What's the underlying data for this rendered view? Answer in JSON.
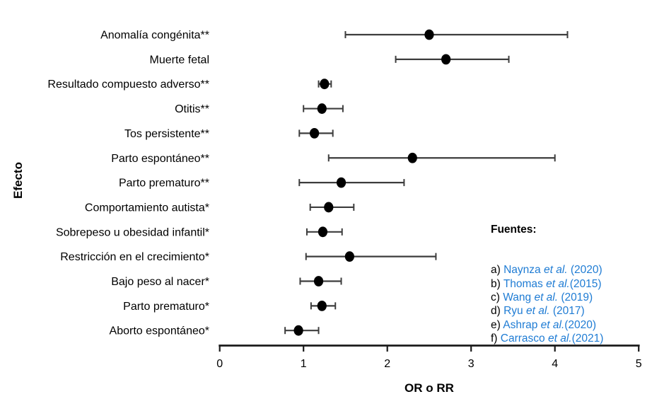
{
  "chart_data": {
    "type": "scatter",
    "subtype": "forest-plot",
    "title": "",
    "xlabel": "OR o RR",
    "ylabel": "Efecto",
    "xlim": [
      0,
      5
    ],
    "xticks": [
      0,
      1,
      2,
      3,
      4,
      5
    ],
    "xtick_labels": [
      "0",
      "1",
      "2",
      "3",
      "4",
      "5"
    ],
    "grid": false,
    "legend_position": "right-middle",
    "series": [
      {
        "name": "OR o RR con intervalo de confianza",
        "points": [
          {
            "label": "Anomalía congénita**",
            "value": 2.5,
            "ci_low": 1.5,
            "ci_high": 4.15
          },
          {
            "label": "Muerte fetal",
            "value": 2.7,
            "ci_low": 2.1,
            "ci_high": 3.45
          },
          {
            "label": "Resultado compuesto adverso**",
            "value": 1.25,
            "ci_low": 1.18,
            "ci_high": 1.33
          },
          {
            "label": "Otitis**",
            "value": 1.22,
            "ci_low": 1.0,
            "ci_high": 1.47
          },
          {
            "label": "Tos persistente**",
            "value": 1.13,
            "ci_low": 0.95,
            "ci_high": 1.35
          },
          {
            "label": "Parto espontáneo**",
            "value": 2.3,
            "ci_low": 1.3,
            "ci_high": 4.0
          },
          {
            "label": "Parto prematuro**",
            "value": 1.45,
            "ci_low": 0.95,
            "ci_high": 2.2
          },
          {
            "label": "Comportamiento autista*",
            "value": 1.3,
            "ci_low": 1.08,
            "ci_high": 1.6
          },
          {
            "label": "Sobrepeso u obesidad infantil*",
            "value": 1.23,
            "ci_low": 1.04,
            "ci_high": 1.46
          },
          {
            "label": "Restricción en el crecimiento*",
            "value": 1.55,
            "ci_low": 1.03,
            "ci_high": 2.58
          },
          {
            "label": "Bajo peso al nacer*",
            "value": 1.18,
            "ci_low": 0.96,
            "ci_high": 1.45
          },
          {
            "label": "Parto prematuro*",
            "value": 1.22,
            "ci_low": 1.09,
            "ci_high": 1.38
          },
          {
            "label": "Aborto espontáneo*",
            "value": 0.94,
            "ci_low": 0.78,
            "ci_high": 1.18
          }
        ]
      }
    ],
    "colors": {
      "point": "#000000",
      "error_bar": "#3d3d3d",
      "axis": "#1a1a1a",
      "text": "#000000",
      "citation_blue": "#1f7cd4"
    }
  },
  "axes": {
    "x_title": "OR o RR",
    "y_title": "Efecto"
  },
  "legend": {
    "title": "Fuentes:",
    "items": [
      {
        "prefix": "a) ",
        "author": "Naynza",
        "etal": "et al.",
        "year": " (2020)"
      },
      {
        "prefix": "b) ",
        "author": "Thomas",
        "etal": "et al.",
        "year": "(2015)"
      },
      {
        "prefix": "c) ",
        "author": "Wang",
        "etal": "et al.",
        "year": " (2019)"
      },
      {
        "prefix": "d) ",
        "author": "Ryu",
        "etal": "et al.",
        "year": " (2017)"
      },
      {
        "prefix": "e) ",
        "author": "Ashrap",
        "etal": "et al.",
        "year": "(2020)"
      },
      {
        "prefix": "f) ",
        "author": "Carrasco",
        "etal": "et al.",
        "year": "(2021)"
      }
    ]
  }
}
